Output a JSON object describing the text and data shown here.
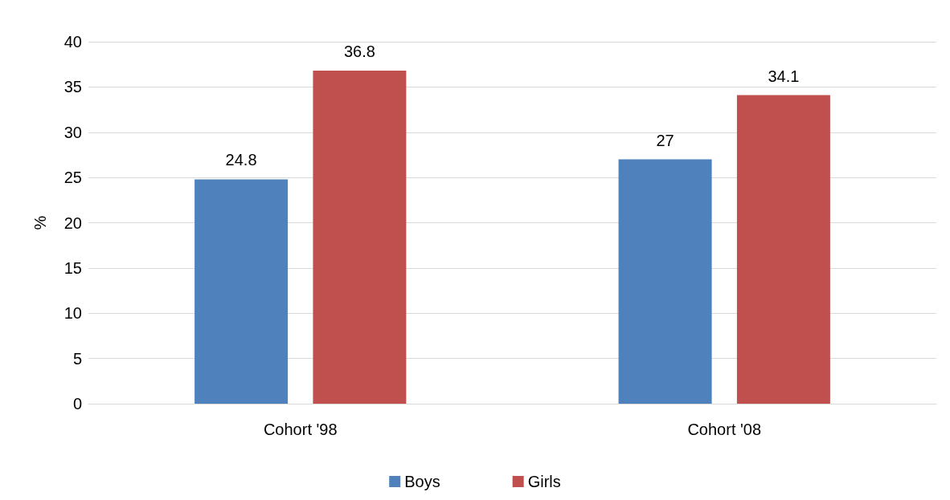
{
  "chart_data": {
    "type": "bar",
    "ylabel": "%",
    "categories": [
      "Cohort '98",
      "Cohort '08"
    ],
    "series": [
      {
        "name": "Boys",
        "color": "#4f81bd",
        "values": [
          24.8,
          27
        ]
      },
      {
        "name": "Girls",
        "color": "#c0504d",
        "values": [
          36.8,
          34.1
        ]
      }
    ],
    "ylim": [
      0,
      40
    ],
    "yticks": [
      0,
      5,
      10,
      15,
      20,
      25,
      30,
      35,
      40
    ],
    "grid": "y",
    "legend": "bottom",
    "data_labels": true
  }
}
